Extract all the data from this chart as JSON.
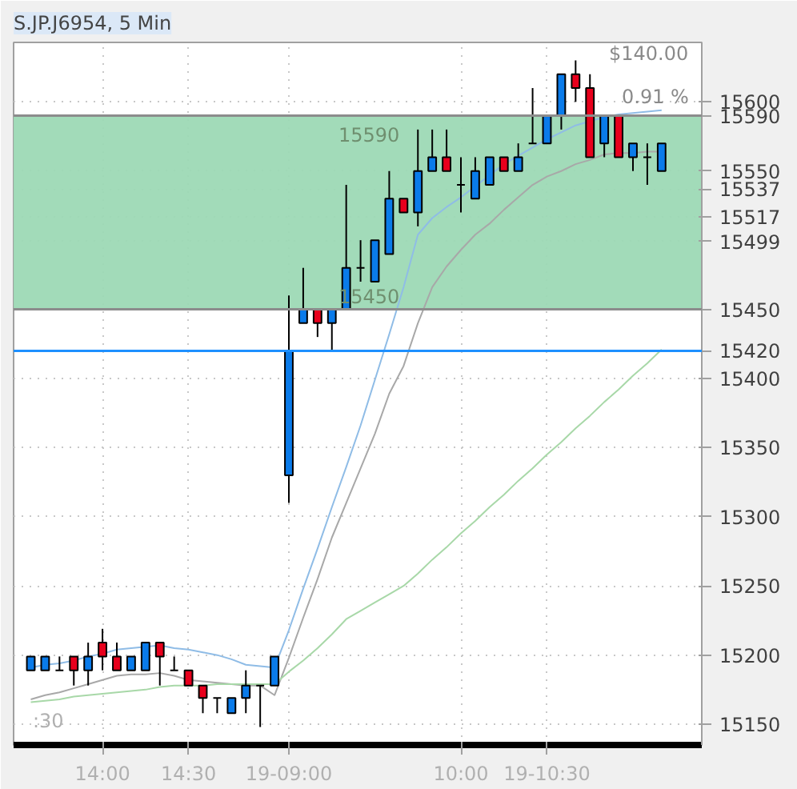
{
  "chart_data": {
    "type": "candlestick",
    "title": "S.JP.J6954, 5 Min",
    "categories": [
      null,
      null,
      null,
      null,
      null,
      "14:00",
      null,
      null,
      null,
      null,
      null,
      "14:30",
      null,
      null,
      null,
      null,
      null,
      null,
      "19-09:00",
      null,
      null,
      null,
      null,
      null,
      null,
      null,
      null,
      null,
      null,
      null,
      "10:00",
      null,
      null,
      null,
      null,
      null,
      "19-10:30",
      null,
      null,
      null,
      null,
      null,
      null,
      null,
      null
    ],
    "ohlc": [
      [
        15189,
        15199,
        15189,
        15199
      ],
      [
        15189,
        15199,
        15189,
        15199
      ],
      [
        15189,
        15199,
        15189,
        15189
      ],
      [
        15199,
        15199,
        15178,
        15189
      ],
      [
        15189,
        15209,
        15178,
        15199
      ],
      [
        15209,
        15219,
        15189,
        15199
      ],
      [
        15199,
        15209,
        15189,
        15189
      ],
      [
        15189,
        15199,
        15189,
        15199
      ],
      [
        15189,
        15209,
        15189,
        15209
      ],
      [
        15209,
        15209,
        15178,
        15199
      ],
      [
        15189,
        15199,
        15189,
        15189
      ],
      [
        15189,
        15189,
        15178,
        15178
      ],
      [
        15178,
        15178,
        15158,
        15169
      ],
      [
        15169,
        15169,
        15158,
        15169
      ],
      [
        15158,
        15169,
        15158,
        15169
      ],
      [
        15169,
        15189,
        15158,
        15178
      ],
      [
        15178,
        15178,
        15148,
        15178
      ],
      [
        15178,
        15199,
        15178,
        15199
      ],
      [
        15330,
        15460,
        15310,
        15420
      ],
      [
        15440,
        15480,
        15440,
        15450
      ],
      [
        15450,
        15450,
        15430,
        15440
      ],
      [
        15440,
        15450,
        15420,
        15450
      ],
      [
        15450,
        15540,
        15450,
        15480
      ],
      [
        15480,
        15500,
        15470,
        15480
      ],
      [
        15470,
        15500,
        15470,
        15500
      ],
      [
        15490,
        15550,
        15490,
        15530
      ],
      [
        15530,
        15530,
        15520,
        15520
      ],
      [
        15520,
        15580,
        15510,
        15550
      ],
      [
        15550,
        15580,
        15550,
        15560
      ],
      [
        15560,
        15580,
        15550,
        15550
      ],
      [
        15540,
        15560,
        15520,
        15540
      ],
      [
        15530,
        15560,
        15530,
        15550
      ],
      [
        15540,
        15560,
        15540,
        15560
      ],
      [
        15560,
        15560,
        15550,
        15550
      ],
      [
        15550,
        15570,
        15550,
        15560
      ],
      [
        15570,
        15610,
        15570,
        15570
      ],
      [
        15570,
        15590,
        15570,
        15590
      ],
      [
        15590,
        15620,
        15580,
        15620
      ],
      [
        15620,
        15630,
        15600,
        15610
      ],
      [
        15610,
        15620,
        15560,
        15560
      ],
      [
        15570,
        15590,
        15560,
        15590
      ],
      [
        15590,
        15590,
        15560,
        15560
      ],
      [
        15560,
        15570,
        15550,
        15570
      ],
      [
        15560,
        15570,
        15540,
        15560
      ],
      [
        15550,
        15570,
        15550,
        15570
      ]
    ],
    "colors": [
      "#0a7bea",
      "#0a7bea",
      "#000000",
      "#e8001c",
      "#0a7bea",
      "#e8001c",
      "#e8001c",
      "#0a7bea",
      "#0a7bea",
      "#e8001c",
      "#000000",
      "#e8001c",
      "#e8001c",
      "#000000",
      "#0a7bea",
      "#0a7bea",
      "#000000",
      "#0a7bea",
      "#0a7bea",
      "#0a7bea",
      "#e8001c",
      "#0a7bea",
      "#0a7bea",
      "#000000",
      "#0a7bea",
      "#0a7bea",
      "#e8001c",
      "#0a7bea",
      "#0a7bea",
      "#e8001c",
      "#000000",
      "#0a7bea",
      "#0a7bea",
      "#e8001c",
      "#0a7bea",
      "#000000",
      "#0a7bea",
      "#0a7bea",
      "#e8001c",
      "#e8001c",
      "#0a7bea",
      "#e8001c",
      "#0a7bea",
      "#000000",
      "#0a7bea"
    ],
    "series": [
      {
        "type": "line",
        "color": "#8fbce6",
        "values": [
          15191,
          15193,
          15194,
          15196,
          15199,
          15201,
          15204,
          15205,
          15206,
          15207,
          15205,
          15204,
          15202,
          15200,
          15197,
          15193,
          15192,
          15191,
          15218,
          15248,
          15277,
          15307,
          15336,
          15366,
          15399,
          15432,
          15466,
          15504,
          15516,
          15524,
          15531,
          15539,
          15547,
          15555,
          15561,
          15567,
          15573,
          15578,
          15583,
          15586,
          15589,
          15591,
          15592,
          15593,
          15594
        ]
      },
      {
        "type": "line",
        "color": "#a8a8a8",
        "values": [
          15168,
          15171,
          15173,
          15176,
          15179,
          15182,
          15185,
          15186,
          15186,
          15187,
          15185,
          15182,
          15181,
          15180,
          15179,
          15178,
          15178,
          15171,
          15198,
          15227,
          15255,
          15285,
          15310,
          15335,
          15360,
          15389,
          15409,
          15440,
          15466,
          15481,
          15493,
          15504,
          15512,
          15522,
          15531,
          15540,
          15546,
          15550,
          15555,
          15558,
          15562,
          15563,
          15563,
          15564,
          15564
        ]
      },
      {
        "type": "line",
        "color": "#a8d8a8",
        "values": [
          15166,
          15167,
          15168,
          15170,
          15171,
          15172,
          15173,
          15174,
          15175,
          15177,
          15178,
          15178,
          15178,
          15179,
          15179,
          15179,
          15179,
          15179,
          15188,
          15196,
          15205,
          15215,
          15226,
          15232,
          15238,
          15244,
          15250,
          15259,
          15269,
          15278,
          15288,
          15297,
          15307,
          15316,
          15326,
          15335,
          15345,
          15354,
          15364,
          15373,
          15383,
          15392,
          15402,
          15411,
          15421
        ]
      }
    ],
    "ylim": [
      15135,
      15643
    ],
    "yticks": [
      15150,
      15200,
      15250,
      15300,
      15350,
      15400,
      15499,
      15517,
      15537,
      15550,
      15600
    ],
    "grid": true,
    "ref_lines": [
      {
        "axis": "y",
        "value": 15590,
        "label": "15590",
        "color": "#8c8c8c"
      },
      {
        "axis": "y",
        "value": 15450,
        "label": "15450",
        "color": "#8c8c8c"
      },
      {
        "axis": "y",
        "value": 15420,
        "label": "15420",
        "color": "#1e90ff"
      }
    ],
    "bands": [
      {
        "axis": "y",
        "from": 15450,
        "to": 15590,
        "color": "#9dd9b5"
      }
    ],
    "annotations": [
      "15590",
      "15450",
      "$140.00",
      "0.91 %",
      ":30"
    ]
  }
}
